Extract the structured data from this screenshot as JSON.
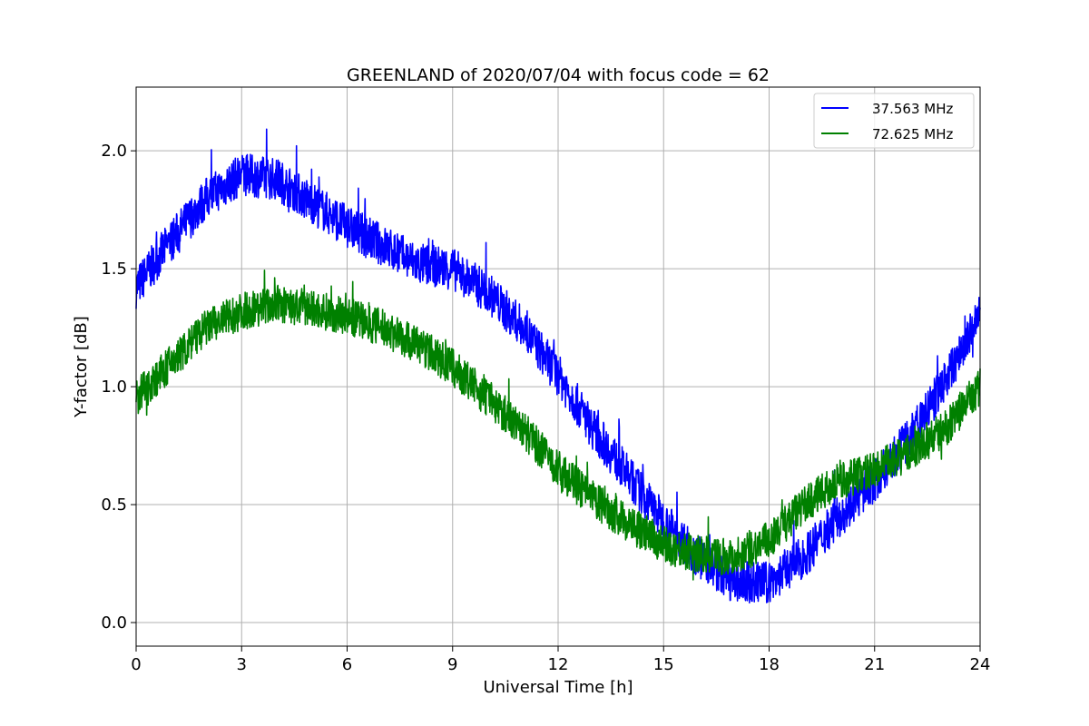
{
  "chart_data": {
    "type": "line",
    "title": "GREENLAND of 2020/07/04 with focus code = 62",
    "xlabel": "Universal Time [h]",
    "ylabel": "Y-factor [dB]",
    "xlim": [
      0,
      24
    ],
    "ylim": [
      -0.1,
      2.27
    ],
    "xticks": [
      "0",
      "3",
      "6",
      "9",
      "12",
      "15",
      "18",
      "21",
      "24"
    ],
    "yticks": [
      "0.0",
      "0.5",
      "1.0",
      "1.5",
      "2.0"
    ],
    "grid": true,
    "legend_position": "top-right",
    "series": [
      {
        "name": "37.563 MHz",
        "color": "#0000ff",
        "noise_amplitude": 0.09,
        "x": [
          0,
          1,
          2,
          3,
          4,
          5,
          6,
          7,
          8,
          9,
          10,
          11,
          12,
          13,
          14,
          15,
          16,
          17,
          18,
          19,
          20,
          21,
          22,
          23,
          24
        ],
        "y": [
          1.42,
          1.62,
          1.8,
          1.9,
          1.88,
          1.78,
          1.68,
          1.6,
          1.52,
          1.5,
          1.4,
          1.25,
          1.05,
          0.82,
          0.62,
          0.43,
          0.28,
          0.17,
          0.17,
          0.28,
          0.45,
          0.6,
          0.78,
          1.02,
          1.3
        ]
      },
      {
        "name": "72.625 MHz",
        "color": "#008000",
        "noise_amplitude": 0.08,
        "x": [
          0,
          1,
          2,
          3,
          4,
          5,
          6,
          7,
          8,
          9,
          10,
          11,
          12,
          13,
          14,
          15,
          16,
          17,
          18,
          19,
          20,
          21,
          22,
          23,
          24
        ],
        "y": [
          0.95,
          1.1,
          1.25,
          1.32,
          1.35,
          1.33,
          1.3,
          1.25,
          1.18,
          1.08,
          0.95,
          0.82,
          0.65,
          0.52,
          0.42,
          0.33,
          0.29,
          0.28,
          0.35,
          0.5,
          0.6,
          0.65,
          0.72,
          0.82,
          1.0
        ]
      }
    ]
  }
}
